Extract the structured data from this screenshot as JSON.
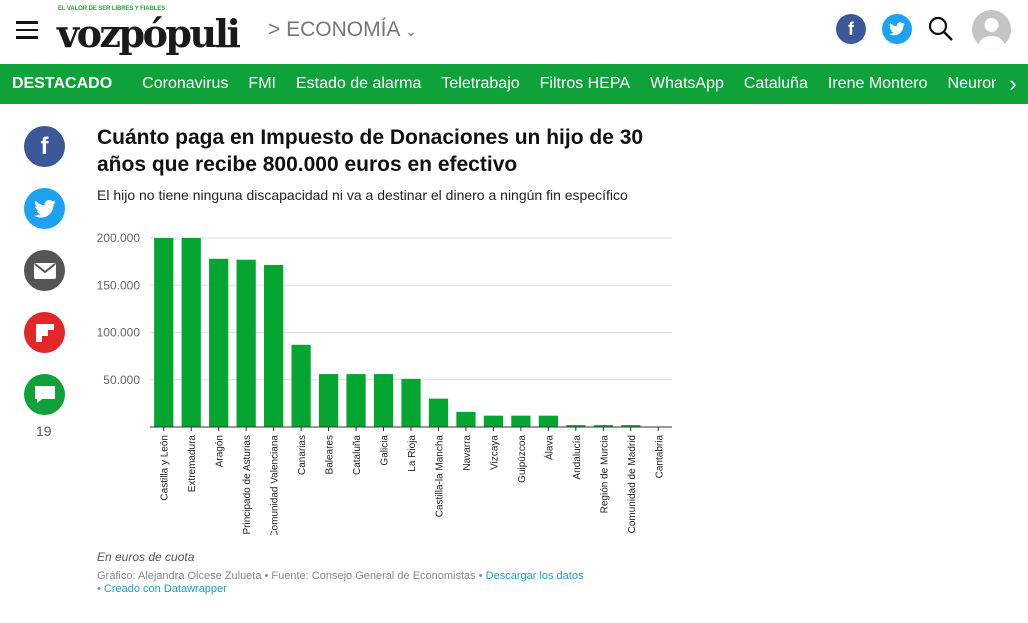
{
  "header": {
    "tagline": "EL VALOR DE SER LIBRES Y FIABLES",
    "logo": "vozpópuli",
    "section": "> ECONOMÍA",
    "section_chevron": "chevron-down-icon"
  },
  "nav": {
    "featured": "DESTACADO",
    "items": [
      "Coronavirus",
      "FMI",
      "Estado de alarma",
      "Teletrabajo",
      "Filtros HEPA",
      "WhatsApp",
      "Cataluña",
      "Irene Montero",
      "Neurona"
    ]
  },
  "share": {
    "comments_count": "19"
  },
  "colors": {
    "brand_green": "#0fa13a",
    "bar": "#05a531",
    "facebook": "#3b5998",
    "twitter": "#1da1f2",
    "flipboard": "#e12828"
  },
  "article": {
    "title": "Cuánto paga en Impuesto de Donaciones un hijo de 30 años que recibe 800.000 euros en efectivo",
    "subtitle": "El hijo no tiene ninguna discapacidad ni va a destinar el dinero a ningún fin específico"
  },
  "chart_data": {
    "type": "bar",
    "categories": [
      "Castilla y León",
      "Extremadura",
      "Aragón",
      "Principado de Asturias",
      "Comunidad Valenciana",
      "Canarias",
      "Baleares",
      "Cataluña",
      "Galicia",
      "La Rioja",
      "Castilla-la Mancha",
      "Navarra",
      "Vizcaya",
      "Guipúzcoa",
      "Álava",
      "Andalucía",
      "Región de Murcia",
      "Comunidad de Madrid",
      "Cantabria"
    ],
    "values": [
      200000,
      200000,
      178000,
      177000,
      171500,
      87000,
      56000,
      56000,
      56000,
      51000,
      30000,
      16000,
      12000,
      12000,
      12000,
      2000,
      2000,
      2000,
      0
    ],
    "yticks": [
      "50.000",
      "100.000",
      "150.000",
      "200.000"
    ],
    "ytick_values": [
      50000,
      100000,
      150000,
      200000
    ],
    "ylim": [
      0,
      200000
    ],
    "grid": true,
    "note": "En euros de cuota"
  },
  "footer": {
    "credit": "Gráfico: Alejandra Olcese Zulueta • Fuente: Consejo General de Economistas • ",
    "download": "Descargar los datos",
    "created": "Creado con Datawrapper",
    "bullet": "• "
  }
}
